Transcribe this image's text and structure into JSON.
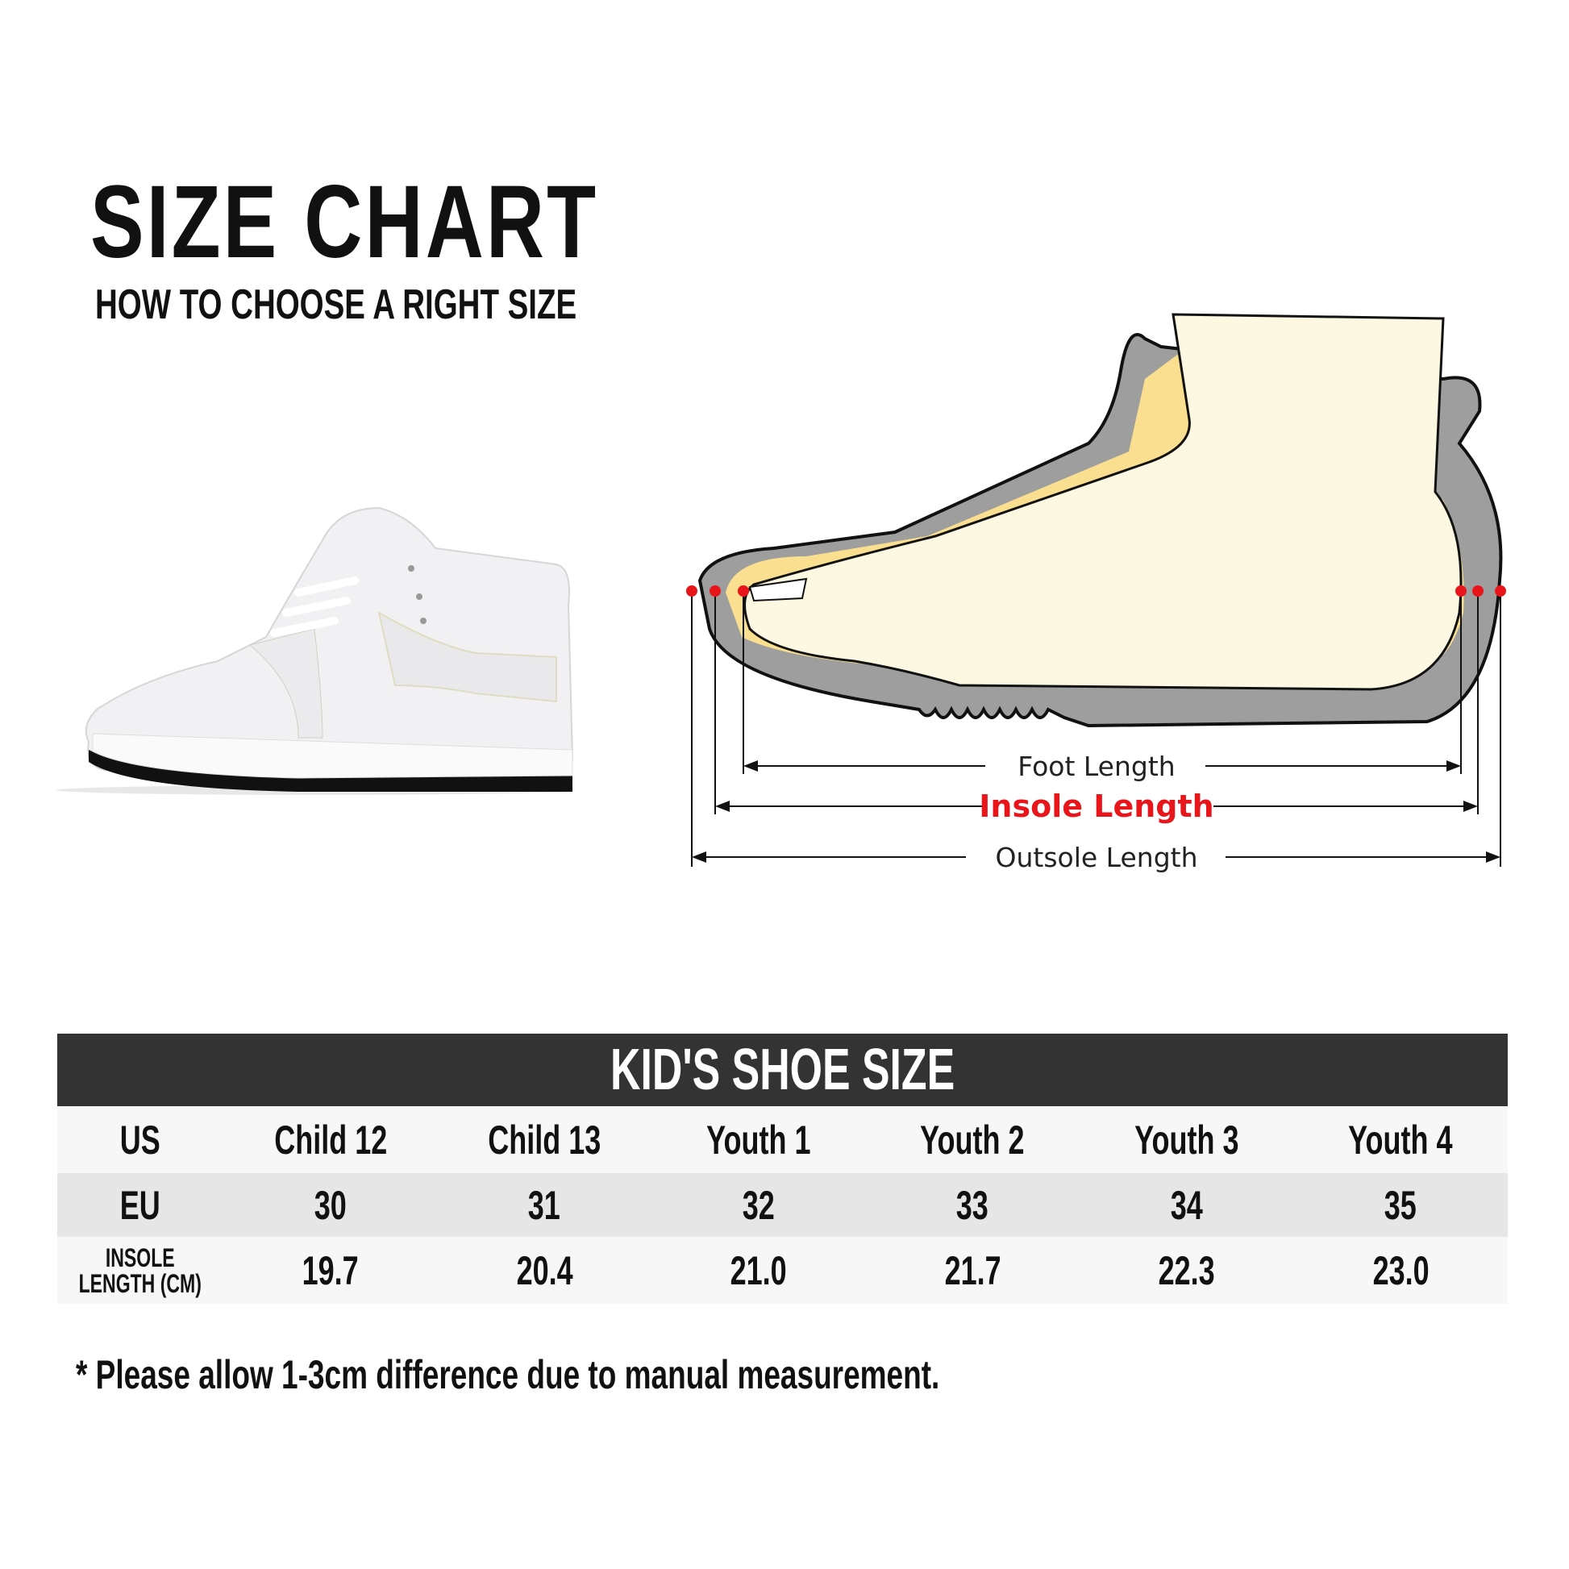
{
  "header": {
    "title": "SIZE CHART",
    "subtitle": "HOW TO CHOOSE A RIGHT SIZE"
  },
  "diagram": {
    "foot_length": "Foot Length",
    "insole_length": "Insole Length",
    "outsole_length": "Outsole Length",
    "colors": {
      "insole_label": "#e8161b",
      "marker": "#e8161b",
      "sole": "#9e9e9e",
      "foot": "#fdf8e1",
      "lining": "#f9df8f"
    }
  },
  "table": {
    "title": "KID'S SHOE SIZE",
    "rows": [
      {
        "label": "US",
        "values": [
          "Child 12",
          "Child 13",
          "Youth 1",
          "Youth 2",
          "Youth 3",
          "Youth 4"
        ]
      },
      {
        "label": "EU",
        "values": [
          "30",
          "31",
          "32",
          "33",
          "34",
          "35"
        ]
      },
      {
        "label": "INSOLE\nLENGTH (CM)",
        "values": [
          "19.7",
          "20.4",
          "21.0",
          "21.7",
          "22.3",
          "23.0"
        ]
      }
    ]
  },
  "footnote": "* Please allow 1-3cm difference due to manual measurement."
}
